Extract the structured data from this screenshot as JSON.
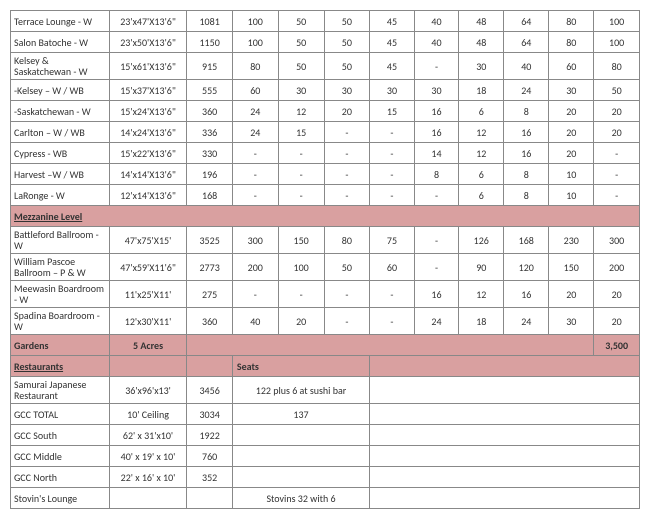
{
  "colors": {
    "header_bg": "#d9a0a0",
    "border": "#888",
    "text": "#333"
  },
  "rows": [
    {
      "n": "Terrace Lounge - W",
      "d": "23'x47'X13'6\"",
      "a": "1081",
      "v": [
        "100",
        "50",
        "50",
        "45",
        "40",
        "48",
        "64",
        "80",
        "100"
      ]
    },
    {
      "n": "Salon Batoche - W",
      "d": "23'x50'X13'6\"",
      "a": "1150",
      "v": [
        "100",
        "50",
        "50",
        "45",
        "40",
        "48",
        "64",
        "80",
        "100"
      ]
    },
    {
      "n": "Kelsey & Saskatchewan - W",
      "d": "15'x61'X13'6\"",
      "a": "915",
      "v": [
        "80",
        "50",
        "50",
        "45",
        "-",
        "30",
        "40",
        "60",
        "80"
      ]
    },
    {
      "n": "-Kelsey – W / WB",
      "d": "15'x37'X13'6\"",
      "a": "555",
      "v": [
        "60",
        "30",
        "30",
        "30",
        "30",
        "18",
        "24",
        "30",
        "50"
      ]
    },
    {
      "n": "-Saskatchewan - W",
      "d": "15'x24'X13'6\"",
      "a": "360",
      "v": [
        "24",
        "12",
        "20",
        "15",
        "16",
        "6",
        "8",
        "20",
        "20"
      ]
    },
    {
      "n": "Carlton – W / WB",
      "d": "14'x24'X13'6\"",
      "a": "336",
      "v": [
        "24",
        "15",
        "-",
        "-",
        "16",
        "12",
        "16",
        "20",
        "20"
      ]
    },
    {
      "n": "Cypress - WB",
      "d": "15'x22'X13'6\"",
      "a": "330",
      "v": [
        "-",
        "-",
        "-",
        "-",
        "14",
        "12",
        "16",
        "20",
        "-"
      ]
    },
    {
      "n": "Harvest –W / WB",
      "d": "14'x14'X13'6\"",
      "a": "196",
      "v": [
        "-",
        "-",
        "-",
        "-",
        "8",
        "6",
        "8",
        "10",
        "-"
      ]
    },
    {
      "n": "LaRonge - W",
      "d": "12'x14'X13'6\"",
      "a": "168",
      "v": [
        "-",
        "-",
        "-",
        "-",
        "-",
        "6",
        "8",
        "10",
        "-"
      ]
    }
  ],
  "mezz_hdr": "Mezzanine Level",
  "mezz": [
    {
      "n": "Battleford Ballroom -W",
      "d": "47'x75'X15'",
      "a": "3525",
      "v": [
        "300",
        "150",
        "80",
        "75",
        "-",
        "126",
        "168",
        "230",
        "300"
      ]
    },
    {
      "n": "William Pascoe Ballroom – P & W",
      "d": "47'x59'X11'6\"",
      "a": "2773",
      "v": [
        "200",
        "100",
        "50",
        "60",
        "-",
        "90",
        "120",
        "150",
        "200"
      ]
    },
    {
      "n": "Meewasin Boardroom - W",
      "d": "11'x25'X11'",
      "a": "275",
      "v": [
        "-",
        "-",
        "-",
        "-",
        "16",
        "12",
        "16",
        "20",
        "20"
      ]
    },
    {
      "n": "Spadina Boardroom - W",
      "d": "12'x30'X11'",
      "a": "360",
      "v": [
        "40",
        "20",
        "-",
        "-",
        "24",
        "18",
        "24",
        "30",
        "20"
      ]
    }
  ],
  "gardens": {
    "label": "Gardens",
    "dim": "5 Acres",
    "cap": "3,500"
  },
  "rest_hdr": "Restaurants",
  "seats_hdr": "Seats",
  "rest": [
    {
      "n": "Samurai Japanese Restaurant",
      "d": "36'x96'x13'",
      "a": "3456",
      "s": "122 plus 6 at sushi bar"
    },
    {
      "n": "GCC TOTAL",
      "d": "10' Ceiling",
      "a": "3034",
      "s": "137"
    },
    {
      "n": "GCC South",
      "d": "62' x 31'x10'",
      "a": "1922",
      "s": ""
    },
    {
      "n": "GCC Middle",
      "d": "40' x 19' x 10'",
      "a": "760",
      "s": ""
    },
    {
      "n": "GCC North",
      "d": "22' x 16' x 10'",
      "a": "352",
      "s": ""
    },
    {
      "n": "Stovin's Lounge",
      "d": "",
      "a": "",
      "s": "Stovins 32 with 6"
    }
  ]
}
